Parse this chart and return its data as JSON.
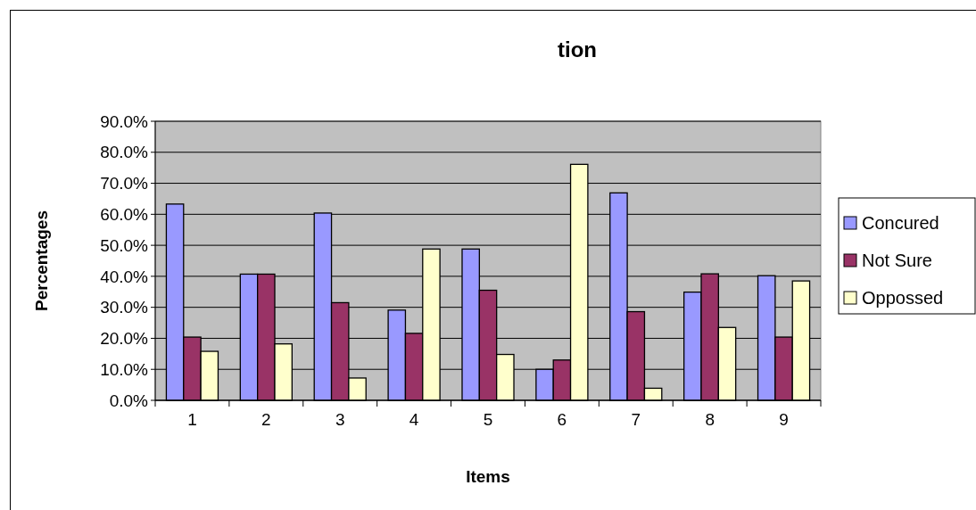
{
  "chart_data": {
    "type": "bar",
    "title": "tion",
    "xlabel": "Items",
    "ylabel": "Percentages",
    "categories": [
      "1",
      "2",
      "3",
      "4",
      "5",
      "6",
      "7",
      "8",
      "9"
    ],
    "series": [
      {
        "name": "Concured",
        "color": "#9999ff",
        "values": [
          63.3,
          40.7,
          60.4,
          29.1,
          48.8,
          10.0,
          66.9,
          34.9,
          40.2
        ]
      },
      {
        "name": "Not Sure",
        "color": "#993366",
        "values": [
          20.4,
          40.7,
          31.5,
          21.6,
          35.5,
          13.0,
          28.6,
          40.8,
          20.4
        ]
      },
      {
        "name": "Oppossed",
        "color": "#ffffcc",
        "values": [
          15.8,
          18.2,
          7.2,
          48.8,
          14.8,
          76.1,
          3.9,
          23.5,
          38.5
        ]
      }
    ],
    "ylim": [
      0,
      90
    ],
    "yticks": [
      {
        "value": 0,
        "label": "0.0%"
      },
      {
        "value": 10,
        "label": "10.0%"
      },
      {
        "value": 20,
        "label": "20.0%"
      },
      {
        "value": 30,
        "label": "30.0%"
      },
      {
        "value": 40,
        "label": "40.0%"
      },
      {
        "value": 50,
        "label": "50.0%"
      },
      {
        "value": 60,
        "label": "60.0%"
      },
      {
        "value": 70,
        "label": "70.0%"
      },
      {
        "value": 80,
        "label": "80.0%"
      },
      {
        "value": 90,
        "label": "90.0%"
      }
    ],
    "grid": "y",
    "legend": "right"
  }
}
